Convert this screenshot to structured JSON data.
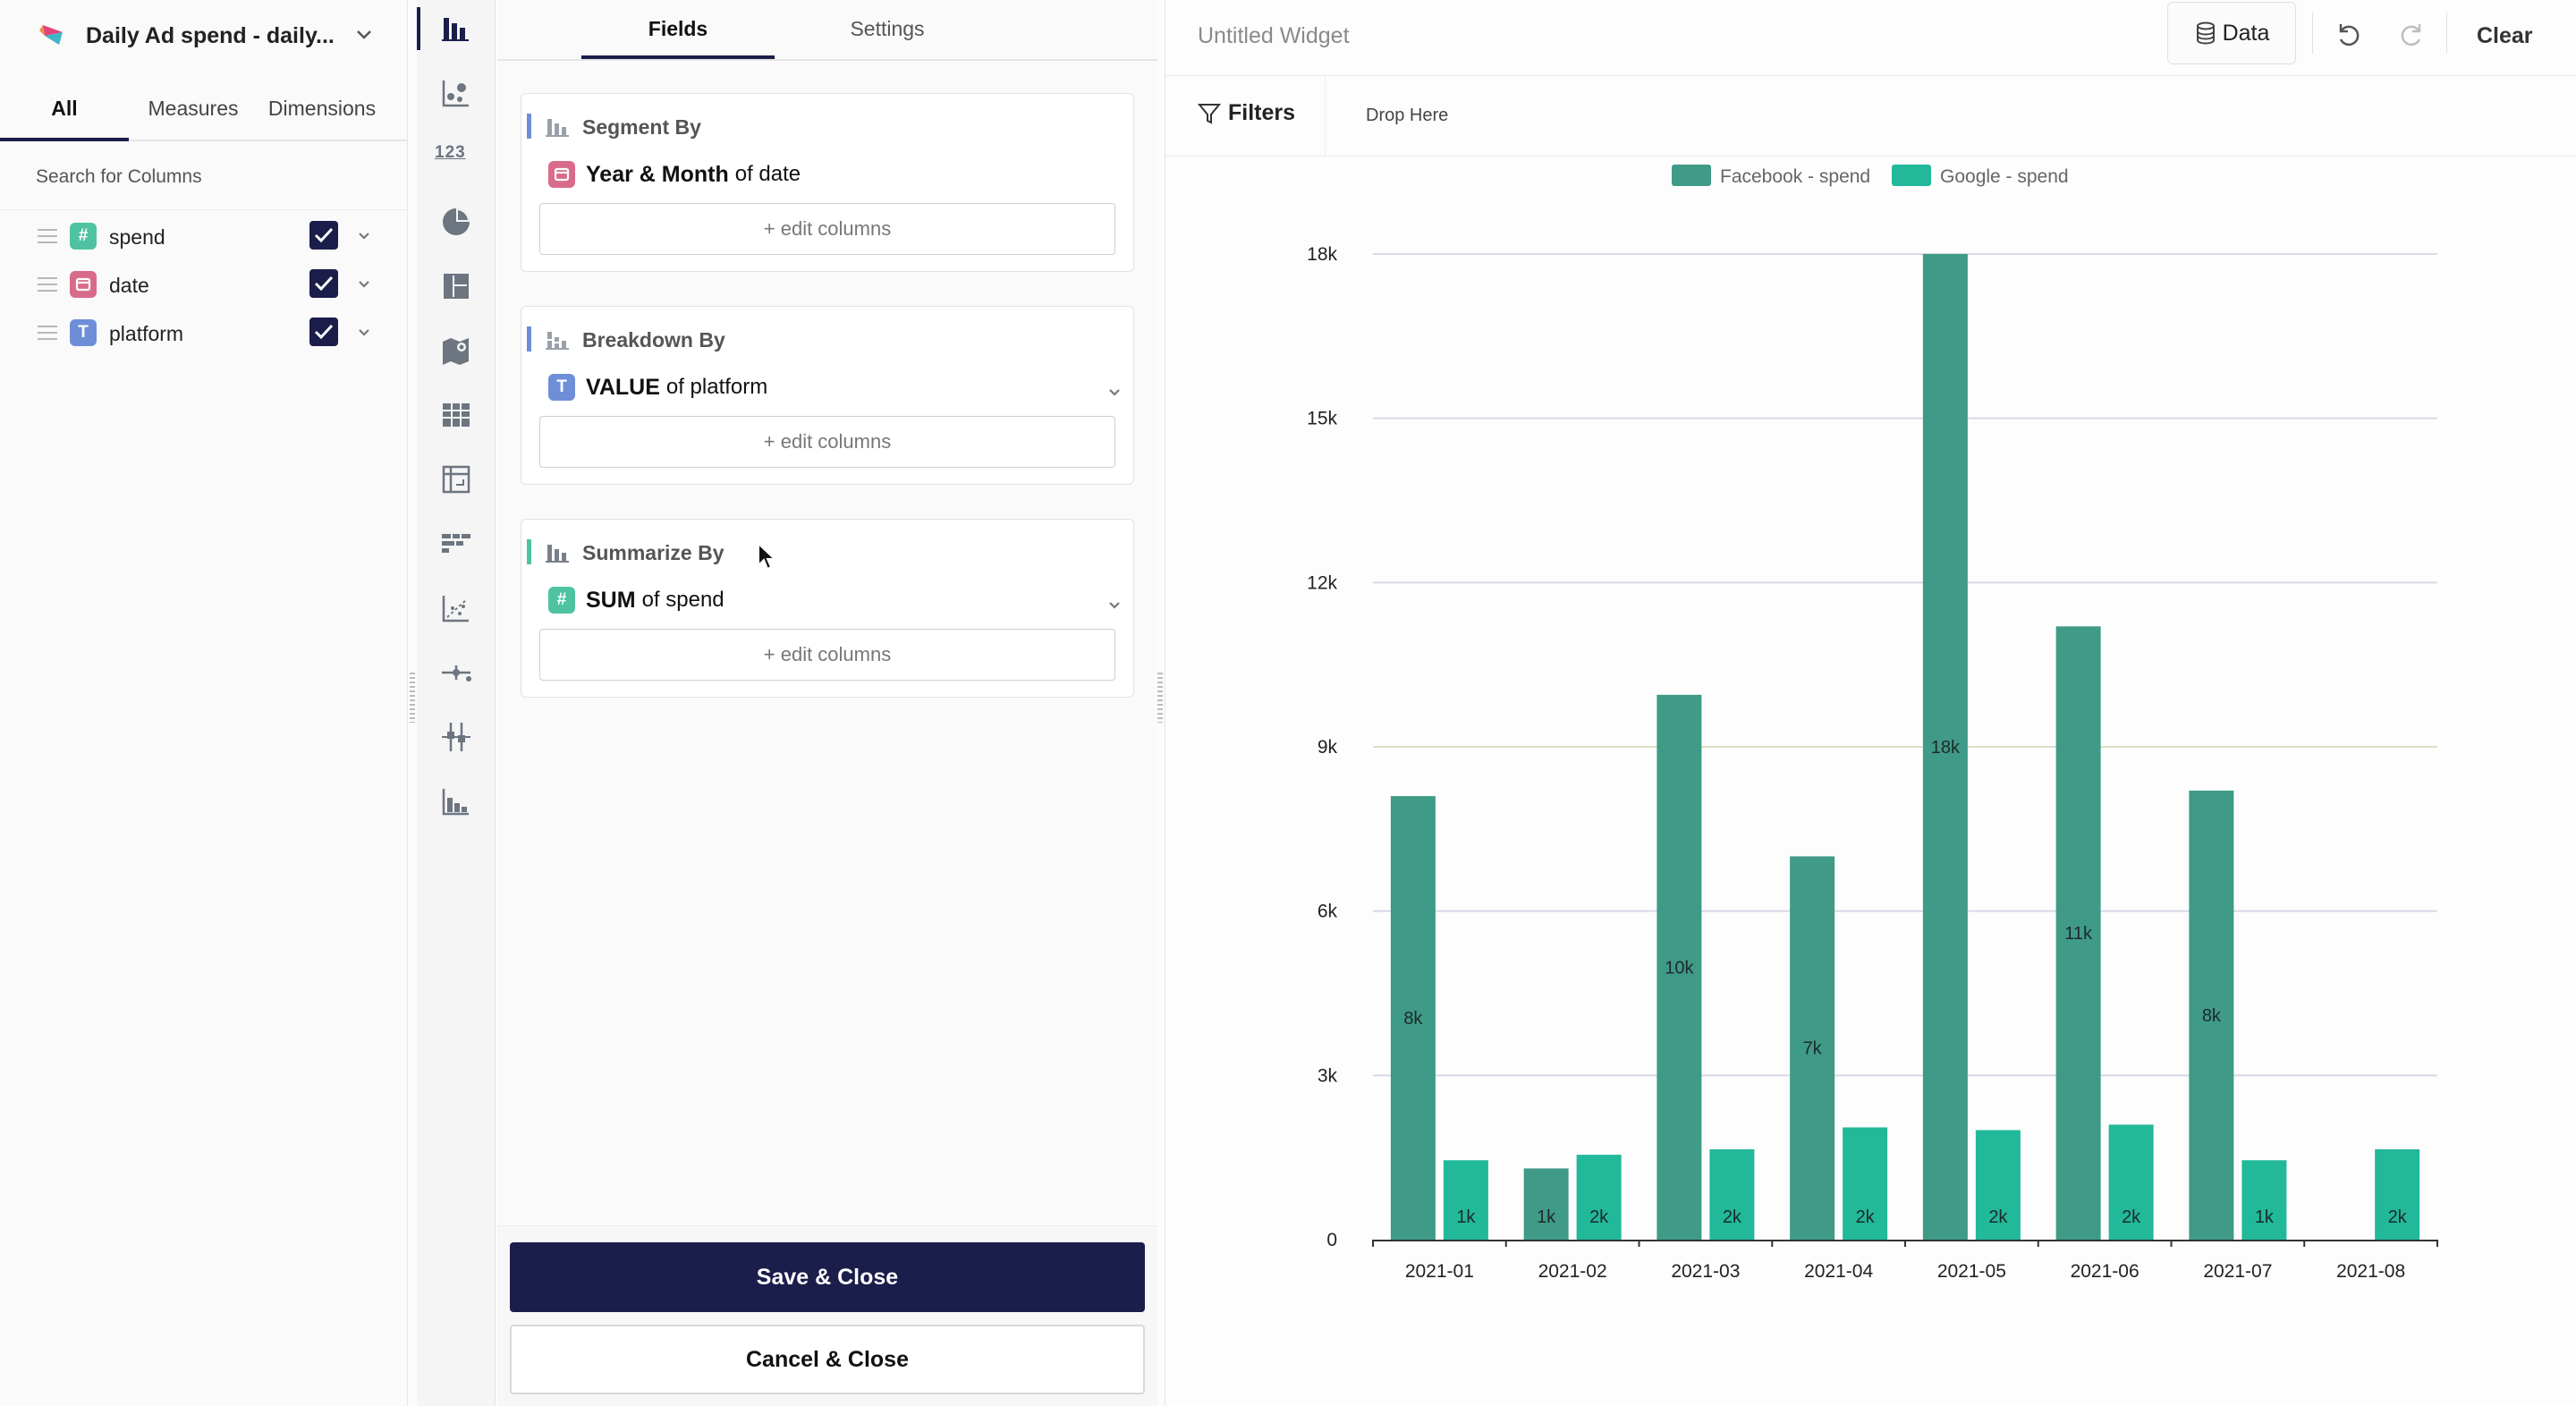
{
  "datasource": {
    "title": "Daily Ad spend - daily..."
  },
  "left_tabs": {
    "all": "All",
    "measures": "Measures",
    "dimensions": "Dimensions"
  },
  "column_search": {
    "placeholder": "Search for Columns"
  },
  "columns": [
    {
      "name": "spend",
      "type_icon": "#",
      "color": "#4fc3a1",
      "checked": true
    },
    {
      "name": "date",
      "type_icon": "calendar",
      "color": "#d96b8a",
      "checked": true
    },
    {
      "name": "platform",
      "type_icon": "T",
      "color": "#6e8fd8",
      "checked": true
    }
  ],
  "rail": {
    "number_icon_label": "123"
  },
  "fields_tabs": {
    "fields": "Fields",
    "settings": "Settings"
  },
  "segment": {
    "title": "Segment By",
    "accent": "#6e8fd8",
    "field_name": "Year & Month",
    "field_suffix": "of date",
    "edit_label": "+ edit columns"
  },
  "breakdown": {
    "title": "Breakdown By",
    "accent": "#6e8fd8",
    "icon_letter": "T",
    "field_name": "VALUE",
    "field_suffix": "of platform",
    "edit_label": "+ edit columns"
  },
  "summarize": {
    "title": "Summarize By",
    "accent": "#4fc3a1",
    "icon_letter": "#",
    "field_name": "SUM",
    "field_suffix": "of spend",
    "edit_label": "+ edit columns"
  },
  "actions": {
    "save": "Save & Close",
    "cancel": "Cancel & Close"
  },
  "widget": {
    "title": "Untitled Widget",
    "data_button": "Data",
    "clear_button": "Clear",
    "filters_label": "Filters",
    "drop_here": "Drop Here"
  },
  "chart_data": {
    "type": "bar",
    "title": "",
    "xlabel": "",
    "ylabel": "",
    "categories": [
      "2021-01",
      "2021-02",
      "2021-03",
      "2021-04",
      "2021-05",
      "2021-06",
      "2021-07",
      "2021-08"
    ],
    "series": [
      {
        "name": "Facebook - spend",
        "color": "#3f9a87",
        "values": [
          8100,
          1300,
          9950,
          7000,
          18000,
          11200,
          8200,
          0
        ],
        "labels": [
          "8k",
          "1k",
          "10k",
          "7k",
          "18k",
          "11k",
          "8k",
          ""
        ]
      },
      {
        "name": "Google - spend",
        "color": "#22b89a",
        "values": [
          1450,
          1550,
          1650,
          2050,
          2000,
          2100,
          1450,
          1650
        ],
        "labels": [
          "1k",
          "2k",
          "2k",
          "2k",
          "2k",
          "2k",
          "1k",
          "2k"
        ]
      }
    ],
    "yticks": [
      0,
      3000,
      6000,
      9000,
      12000,
      15000,
      18000
    ],
    "ytick_labels": [
      "0",
      "3k",
      "6k",
      "9k",
      "12k",
      "15k",
      "18k"
    ],
    "ylim": [
      0,
      18000
    ],
    "grid": true,
    "legend_position": "top-center"
  }
}
